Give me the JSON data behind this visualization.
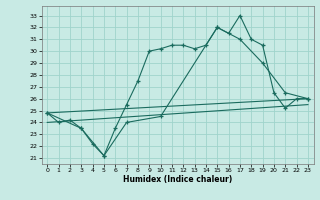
{
  "xlabel": "Humidex (Indice chaleur)",
  "bg_color": "#c8eae4",
  "grid_color": "#a0d4cc",
  "line_color": "#1a6b5e",
  "xlim": [
    -0.5,
    23.5
  ],
  "ylim": [
    20.5,
    33.8
  ],
  "xticks": [
    0,
    1,
    2,
    3,
    4,
    5,
    6,
    7,
    8,
    9,
    10,
    11,
    12,
    13,
    14,
    15,
    16,
    17,
    18,
    19,
    20,
    21,
    22,
    23
  ],
  "yticks": [
    21,
    22,
    23,
    24,
    25,
    26,
    27,
    28,
    29,
    30,
    31,
    32,
    33
  ],
  "series": [
    {
      "x": [
        0,
        1,
        2,
        3,
        4,
        5,
        6,
        7,
        8,
        9,
        10,
        11,
        12,
        13,
        14,
        15,
        16,
        17,
        18,
        19,
        20,
        21,
        22,
        23
      ],
      "y": [
        24.8,
        24.0,
        24.2,
        23.5,
        22.2,
        21.2,
        23.5,
        25.5,
        27.5,
        30.0,
        30.2,
        30.5,
        30.5,
        30.2,
        30.5,
        32.0,
        31.5,
        33.0,
        31.0,
        30.5,
        26.5,
        25.2,
        26.0,
        26.0
      ],
      "marker": true
    },
    {
      "x": [
        0,
        3,
        5,
        7,
        10,
        15,
        17,
        19,
        21,
        23
      ],
      "y": [
        24.8,
        23.5,
        21.2,
        24.0,
        24.5,
        32.0,
        31.0,
        29.0,
        26.5,
        26.0
      ],
      "marker": true
    },
    {
      "x": [
        0,
        23
      ],
      "y": [
        24.8,
        26.0
      ],
      "marker": false
    },
    {
      "x": [
        0,
        23
      ],
      "y": [
        24.0,
        25.5
      ],
      "marker": false
    }
  ]
}
